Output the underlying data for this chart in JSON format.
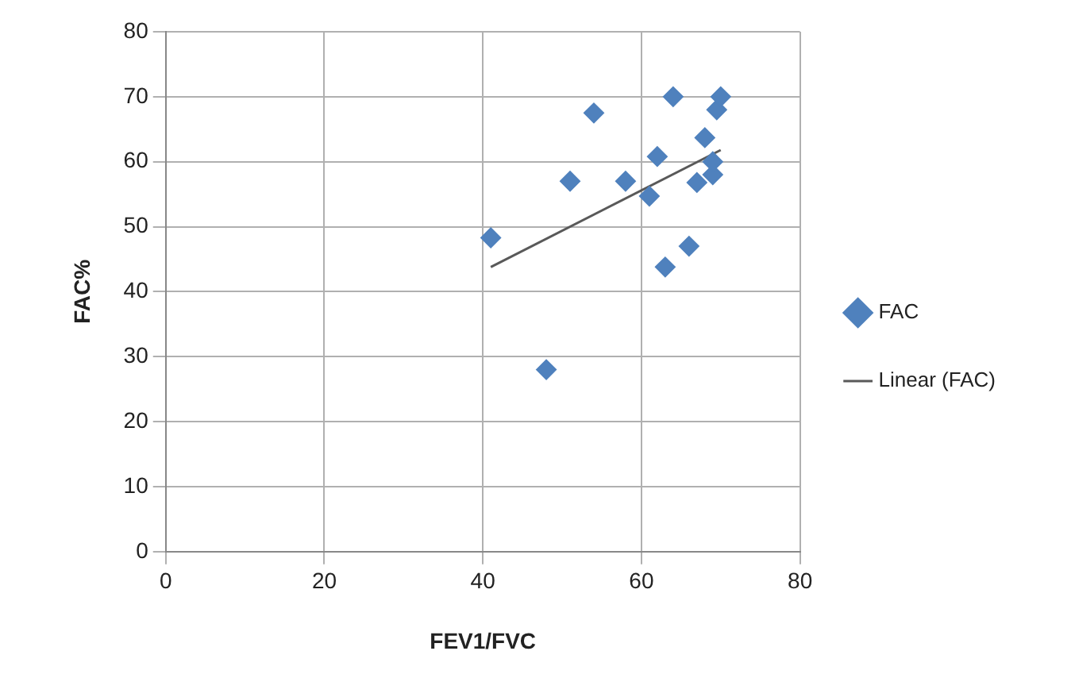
{
  "chart_data": {
    "type": "scatter",
    "xlabel": "FEV1/FVC",
    "ylabel": "FAC%",
    "xlim": [
      0,
      80
    ],
    "xticks": [
      0,
      20,
      40,
      60,
      80
    ],
    "ylim": [
      0,
      80
    ],
    "yticks": [
      0,
      10,
      20,
      30,
      40,
      50,
      60,
      70,
      80
    ],
    "grid": true,
    "legend": "right",
    "series": [
      {
        "name": "FAC",
        "marker": "diamond",
        "color": "#4f81bd",
        "x": [
          41,
          48,
          51,
          54,
          58,
          61,
          62,
          63,
          64,
          66,
          67,
          68,
          69,
          69,
          69.5,
          70
        ],
        "values": [
          48.3,
          28,
          57,
          67.5,
          57,
          54.7,
          60.8,
          43.8,
          70,
          47,
          56.8,
          63.7,
          58,
          60,
          68,
          70
        ]
      },
      {
        "name": "Linear (FAC)",
        "type": "line",
        "marker": "none",
        "color": "#595959",
        "x": [
          41,
          70
        ],
        "values": [
          43.8,
          61.8
        ]
      }
    ]
  }
}
